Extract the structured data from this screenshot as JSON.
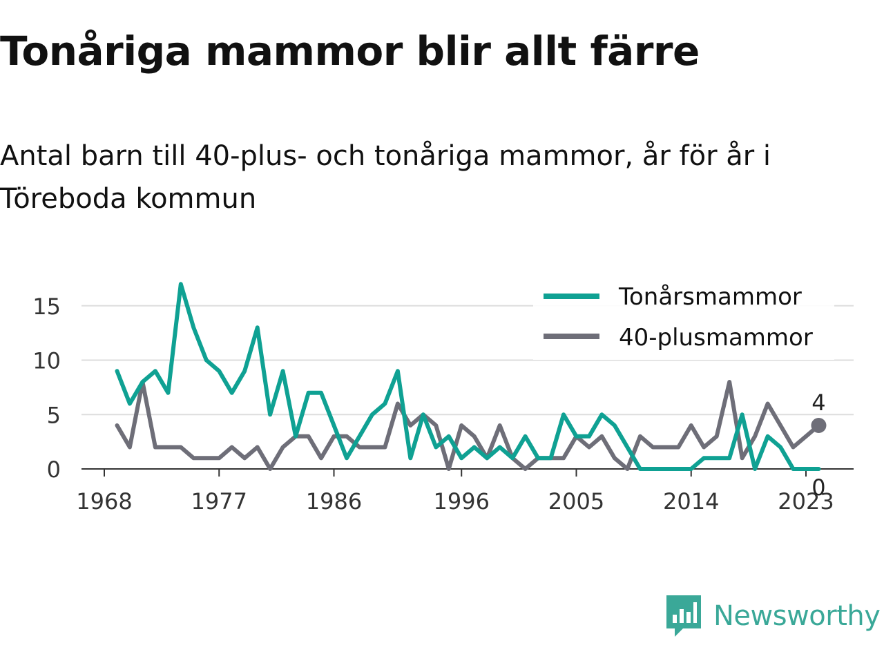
{
  "title": "Tonåriga mammor blir allt färre",
  "subtitle": "Antal barn till 40-plus- och tonåriga mammor, år för år i Töreboda kommun",
  "brand": {
    "name": "Newsworthy",
    "icon": "chart-speech-bubble-icon",
    "color": "#3aa898"
  },
  "chart_data": {
    "type": "line",
    "title": "Tonåriga mammor blir allt färre",
    "xlabel": "",
    "ylabel": "",
    "x_range": [
      1968,
      2024
    ],
    "ylim": [
      0,
      17
    ],
    "x_ticks": [
      1968,
      1977,
      1986,
      1996,
      2005,
      2014,
      2023
    ],
    "y_ticks": [
      0,
      5,
      10,
      15
    ],
    "grid": "horizontal",
    "legend_position": "top-right",
    "x": [
      1969,
      1970,
      1971,
      1972,
      1973,
      1974,
      1975,
      1976,
      1977,
      1978,
      1979,
      1980,
      1981,
      1982,
      1983,
      1984,
      1985,
      1986,
      1987,
      1988,
      1989,
      1990,
      1991,
      1992,
      1993,
      1994,
      1995,
      1996,
      1997,
      1998,
      1999,
      2000,
      2001,
      2002,
      2003,
      2004,
      2005,
      2006,
      2007,
      2008,
      2009,
      2010,
      2011,
      2012,
      2013,
      2014,
      2015,
      2016,
      2017,
      2018,
      2019,
      2020,
      2021,
      2022,
      2023,
      2024
    ],
    "series": [
      {
        "name": "Tonårsmammor",
        "color": "#0fa193",
        "values": [
          9,
          6,
          8,
          9,
          7,
          17,
          13,
          10,
          9,
          7,
          9,
          13,
          5,
          9,
          3,
          7,
          7,
          4,
          1,
          3,
          5,
          6,
          9,
          1,
          5,
          2,
          3,
          1,
          2,
          1,
          2,
          1,
          3,
          1,
          1,
          5,
          3,
          3,
          5,
          4,
          2,
          0,
          0,
          0,
          0,
          0,
          1,
          1,
          1,
          5,
          0,
          3,
          2,
          0,
          0,
          0
        ],
        "end_label": "0"
      },
      {
        "name": "40-plusmammor",
        "color": "#6e6e78",
        "values": [
          4,
          2,
          8,
          2,
          2,
          2,
          1,
          1,
          1,
          2,
          1,
          2,
          0,
          2,
          3,
          3,
          1,
          3,
          3,
          2,
          2,
          2,
          6,
          4,
          5,
          4,
          0,
          4,
          3,
          1,
          4,
          1,
          0,
          1,
          1,
          1,
          3,
          2,
          3,
          1,
          0,
          3,
          2,
          2,
          2,
          4,
          2,
          3,
          8,
          1,
          3,
          6,
          4,
          2,
          3,
          4
        ],
        "end_label": "4"
      }
    ]
  }
}
